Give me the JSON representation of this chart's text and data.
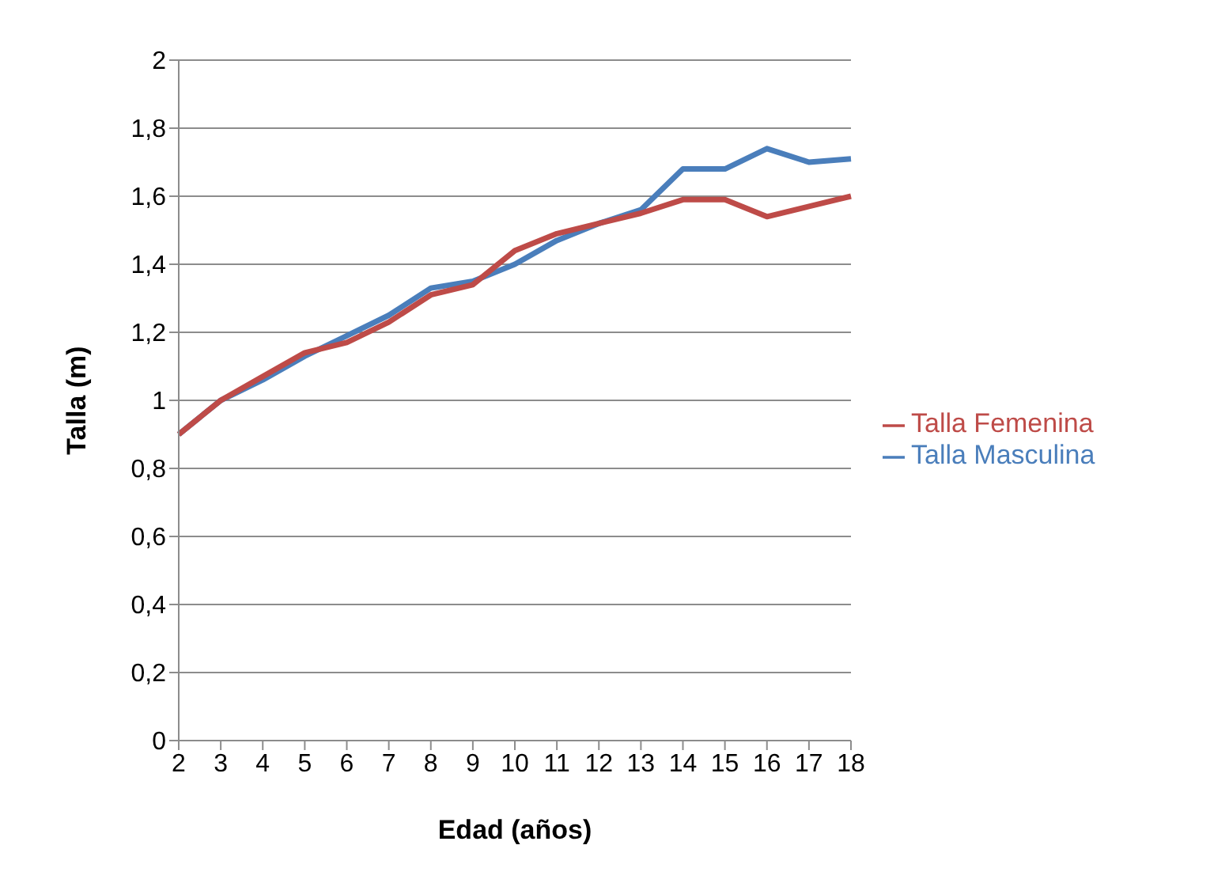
{
  "chart_data": {
    "type": "line",
    "xlabel": "Edad (años)",
    "ylabel": "Talla (m)",
    "categories": [
      "2",
      "3",
      "4",
      "5",
      "6",
      "7",
      "8",
      "9",
      "10",
      "11",
      "12",
      "13",
      "14",
      "15",
      "16",
      "17",
      "18"
    ],
    "series": [
      {
        "name": "Talla Masculina",
        "color": "#4a7ebb",
        "values": [
          0.9,
          1.0,
          1.06,
          1.13,
          1.19,
          1.25,
          1.33,
          1.35,
          1.4,
          1.47,
          1.52,
          1.56,
          1.68,
          1.68,
          1.74,
          1.7,
          1.71
        ]
      },
      {
        "name": "Talla Femenina",
        "color": "#be4b48",
        "values": [
          0.9,
          1.0,
          1.07,
          1.14,
          1.17,
          1.23,
          1.31,
          1.34,
          1.44,
          1.49,
          1.52,
          1.55,
          1.59,
          1.59,
          1.54,
          1.57,
          1.6
        ]
      }
    ],
    "ylim": [
      0,
      2
    ],
    "yticks": [
      0,
      {
        "value": 0.2,
        "label": "0,2"
      },
      {
        "value": 0.4,
        "label": "0,4"
      },
      {
        "value": 0.6,
        "label": "0,6"
      },
      {
        "value": 0.8,
        "label": "0,8"
      },
      1,
      {
        "value": 1.2,
        "label": "1,2"
      },
      {
        "value": 1.4,
        "label": "1,4"
      },
      {
        "value": 1.6,
        "label": "1,6"
      },
      {
        "value": 1.8,
        "label": "1,8"
      },
      2
    ],
    "grid": "y",
    "legend": "right",
    "marker": "none",
    "line_style": "solid"
  }
}
